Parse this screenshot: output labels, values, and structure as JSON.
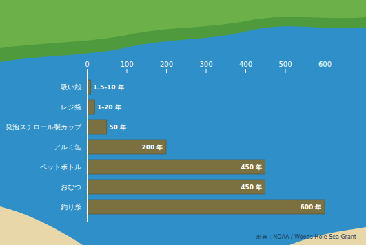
{
  "chart_data": {
    "type": "bar",
    "orientation": "horizontal",
    "categories": [
      "吸い殻",
      "レジ袋",
      "発泡スチロール製カップ",
      "アルミ缶",
      "ペットボトル",
      "おむつ",
      "釣り糸"
    ],
    "values": [
      10,
      20,
      50,
      200,
      450,
      450,
      600
    ],
    "value_labels": [
      "1.5-10 年",
      "1-20 年",
      "50 年",
      "200 年",
      "450 年",
      "450 年",
      "600 年"
    ],
    "color": "#7a7040",
    "xlim": [
      0,
      600
    ],
    "xticks": [
      0,
      100,
      200,
      300,
      400,
      500,
      600
    ],
    "grid": false,
    "data_labels": true,
    "source": "出典：NOAA / Woods Hole Sea Grant"
  }
}
